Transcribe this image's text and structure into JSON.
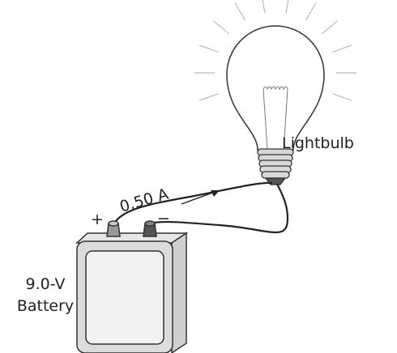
{
  "labels": {
    "lightbulb": "Lightbulb",
    "current": "0.50 A",
    "plus": "+",
    "minus": "−",
    "battery_voltage": "9.0-V",
    "battery": "Battery"
  }
}
